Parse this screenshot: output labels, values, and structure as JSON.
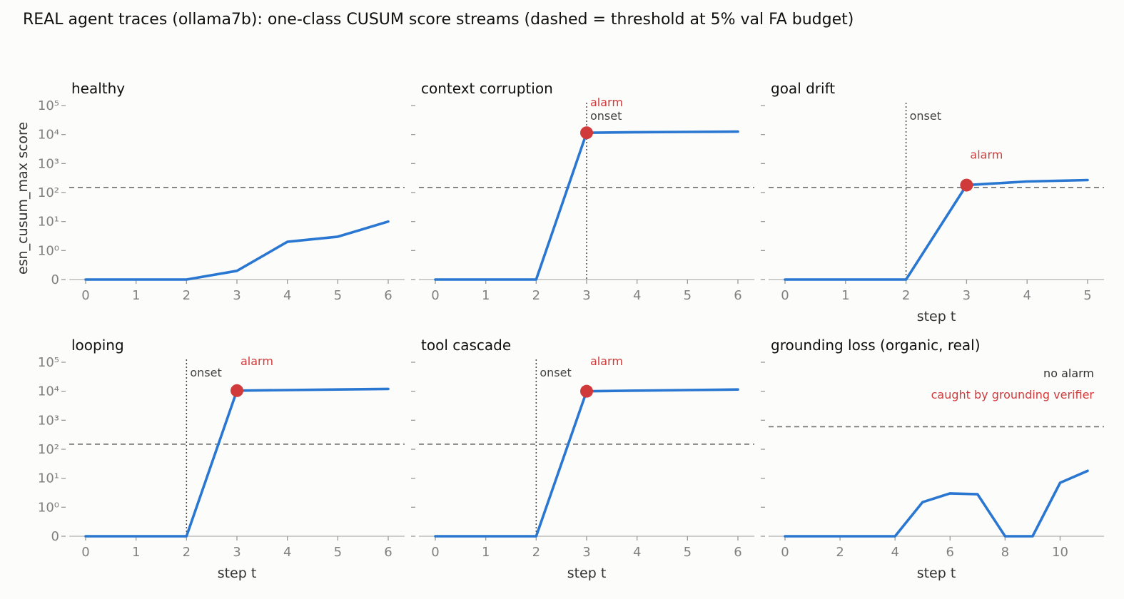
{
  "figure": {
    "title": "REAL agent traces (ollama7b): one-class CUSUM score streams (dashed = threshold at 5% val FA budget)"
  },
  "colors": {
    "line": "#2a77d2",
    "alarm": "#d03a3a",
    "threshold": "#777777",
    "onset": "#444444",
    "tick_text": "#808080",
    "no_alarm_text": "#333333"
  },
  "chart_data": [
    {
      "type": "line",
      "title": "healthy",
      "xlabel": "",
      "ylabel": "esn_cusum_max score",
      "yscale": "symlog",
      "y_ticks": [
        0,
        1,
        10,
        100,
        1000,
        10000,
        100000
      ],
      "ylim": [
        0,
        100000
      ],
      "x_ticks": [
        0,
        1,
        2,
        3,
        4,
        5,
        6
      ],
      "x": [
        0,
        1,
        2,
        3,
        4,
        5,
        6
      ],
      "y": [
        0,
        0,
        0,
        0.3,
        2.0,
        3.0,
        10.0
      ],
      "threshold": 150,
      "grid": false
    },
    {
      "type": "line",
      "title": "context corruption",
      "xlabel": "",
      "yscale": "symlog",
      "y_ticks": [
        0,
        1,
        10,
        100,
        1000,
        10000,
        100000
      ],
      "ylim": [
        0,
        100000
      ],
      "x_ticks": [
        0,
        1,
        2,
        3,
        4,
        5,
        6
      ],
      "x": [
        0,
        1,
        2,
        3,
        4,
        5,
        6
      ],
      "y": [
        0,
        0,
        0,
        11500,
        12000,
        12300,
        12600
      ],
      "threshold": 150,
      "onset": {
        "x": 3,
        "label": "onset"
      },
      "alarm": {
        "x": 3,
        "y": 11500,
        "label": "alarm"
      },
      "grid": false
    },
    {
      "type": "line",
      "title": "goal drift",
      "xlabel": "step t",
      "yscale": "symlog",
      "y_ticks": [
        0,
        1,
        10,
        100,
        1000,
        10000,
        100000
      ],
      "ylim": [
        0,
        100000
      ],
      "x_ticks": [
        0,
        1,
        2,
        3,
        4,
        5
      ],
      "x": [
        0,
        1,
        2,
        3,
        4,
        5
      ],
      "y": [
        0,
        0,
        0,
        180,
        240,
        270
      ],
      "threshold": 150,
      "onset": {
        "x": 2,
        "label": "onset"
      },
      "alarm": {
        "x": 3,
        "y": 180,
        "label": "alarm"
      },
      "grid": false
    },
    {
      "type": "line",
      "title": "looping",
      "xlabel": "step t",
      "yscale": "symlog",
      "y_ticks": [
        0,
        1,
        10,
        100,
        1000,
        10000,
        100000
      ],
      "ylim": [
        0,
        100000
      ],
      "x_ticks": [
        0,
        1,
        2,
        3,
        4,
        5,
        6
      ],
      "x": [
        0,
        1,
        2,
        3,
        4,
        5,
        6
      ],
      "y": [
        0,
        0,
        0,
        10500,
        11000,
        11500,
        12000
      ],
      "threshold": 150,
      "onset": {
        "x": 2,
        "label": "onset"
      },
      "alarm": {
        "x": 3,
        "y": 10500,
        "label": "alarm"
      },
      "grid": false
    },
    {
      "type": "line",
      "title": "tool cascade",
      "xlabel": "step t",
      "yscale": "symlog",
      "y_ticks": [
        0,
        1,
        10,
        100,
        1000,
        10000,
        100000
      ],
      "ylim": [
        0,
        100000
      ],
      "x_ticks": [
        0,
        1,
        2,
        3,
        4,
        5,
        6
      ],
      "x": [
        0,
        1,
        2,
        3,
        4,
        5,
        6
      ],
      "y": [
        0,
        0,
        0,
        10000,
        10500,
        11000,
        11500
      ],
      "threshold": 150,
      "onset": {
        "x": 2,
        "label": "onset"
      },
      "alarm": {
        "x": 3,
        "y": 10000,
        "label": "alarm"
      },
      "grid": false
    },
    {
      "type": "line",
      "title": "grounding loss (organic, real)",
      "xlabel": "step t",
      "yscale": "symlog",
      "y_ticks": [
        0,
        1,
        10,
        100,
        1000,
        10000,
        100000
      ],
      "ylim": [
        0,
        100000
      ],
      "x_ticks": [
        0,
        2,
        4,
        6,
        8,
        10
      ],
      "x": [
        0,
        1,
        2,
        3,
        4,
        5,
        6,
        7,
        8,
        9,
        10,
        11
      ],
      "y": [
        0,
        0,
        0,
        0,
        0,
        1.5,
        3.0,
        2.8,
        0,
        0,
        7.0,
        18.0
      ],
      "threshold": 600,
      "notes": [
        "no alarm",
        "caught by grounding verifier"
      ],
      "grid": false
    }
  ]
}
